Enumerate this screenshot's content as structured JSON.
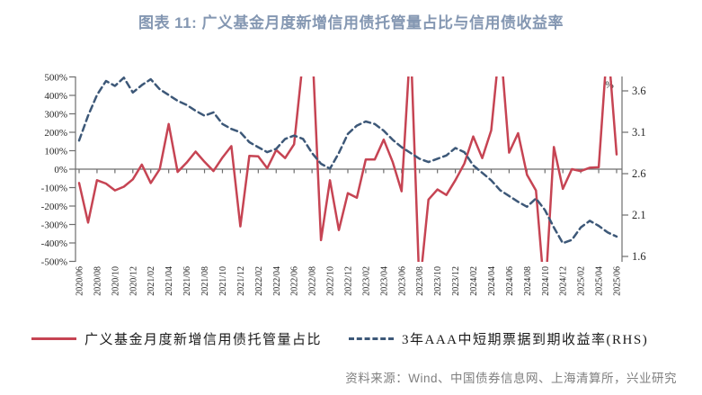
{
  "title": {
    "text": "图表 11: 广义基金月度新增信用债托管量占比与信用债收益率",
    "color": "#8497B2"
  },
  "source": {
    "text": "资料来源：Wind、中国债券信息网、上海清算所，兴业研究"
  },
  "legend": [
    {
      "label": "广义基金月度新增信用债托管量占比",
      "style": "solid",
      "color": "#C64453"
    },
    {
      "label": "3年AAA中短期票据到期收益率(RHS)",
      "style": "dashed",
      "color": "#3D5878"
    }
  ],
  "chart_data": {
    "type": "line",
    "title": "广义基金月度新增信用债托管量占比与信用债收益率",
    "categories": [
      "2020/06",
      "2020/07",
      "2020/08",
      "2020/09",
      "2020/10",
      "2020/11",
      "2020/12",
      "2021/01",
      "2021/02",
      "2021/03",
      "2021/04",
      "2021/05",
      "2021/06",
      "2021/07",
      "2021/08",
      "2021/09",
      "2021/10",
      "2021/11",
      "2021/12",
      "2022/01",
      "2022/02",
      "2022/03",
      "2022/04",
      "2022/05",
      "2022/06",
      "2022/07",
      "2022/08",
      "2022/09",
      "2022/10",
      "2022/11",
      "2022/12",
      "2023/01",
      "2023/02",
      "2023/03",
      "2023/04",
      "2023/05",
      "2023/06",
      "2023/07",
      "2023/08",
      "2023/09",
      "2023/10",
      "2023/11",
      "2023/12",
      "2024/01",
      "2024/02",
      "2024/03",
      "2024/04",
      "2024/05",
      "2024/06",
      "2024/07",
      "2024/08",
      "2024/09",
      "2024/10",
      "2024/11",
      "2024/12",
      "2025/01",
      "2025/02",
      "2025/03",
      "2025/04",
      "2025/05",
      "2025/06"
    ],
    "x_label_every": 2,
    "grid": "zero-line-only",
    "legend_position": "bottom",
    "series": [
      {
        "name": "广义基金月度新增信用债托管量占比",
        "axis": "left",
        "style": "solid",
        "color": "#C64453",
        "note": "values in %, points beyond ±500 are clipped by the plot area (estimated)",
        "values": [
          -75,
          -290,
          -60,
          -78,
          -115,
          -95,
          -55,
          25,
          -75,
          0,
          245,
          -15,
          35,
          95,
          40,
          -10,
          63,
          125,
          -310,
          72,
          70,
          5,
          104,
          60,
          135,
          600,
          700,
          -385,
          -60,
          -330,
          -130,
          -155,
          52,
          52,
          160,
          40,
          -120,
          700,
          -650,
          -165,
          -110,
          -140,
          -60,
          30,
          177,
          60,
          210,
          700,
          90,
          195,
          -30,
          -116,
          -700,
          120,
          -107,
          0,
          -10,
          8,
          10,
          700,
          80
        ]
      },
      {
        "name": "3年AAA中短期票据到期收益率(RHS)",
        "axis": "right",
        "style": "dashed",
        "color": "#3D5878",
        "note": "values in %, right-hand scale",
        "values": [
          3.0,
          3.3,
          3.55,
          3.72,
          3.66,
          3.76,
          3.58,
          3.67,
          3.74,
          3.62,
          3.55,
          3.48,
          3.43,
          3.36,
          3.3,
          3.34,
          3.2,
          3.14,
          3.1,
          2.98,
          2.92,
          2.86,
          2.9,
          3.02,
          3.06,
          3.02,
          2.85,
          2.72,
          2.66,
          2.85,
          3.08,
          3.18,
          3.23,
          3.2,
          3.12,
          3.01,
          2.92,
          2.85,
          2.78,
          2.74,
          2.78,
          2.82,
          2.91,
          2.86,
          2.7,
          2.61,
          2.52,
          2.4,
          2.33,
          2.26,
          2.2,
          2.3,
          2.16,
          1.95,
          1.76,
          1.8,
          1.95,
          2.03,
          1.97,
          1.89,
          1.84
        ]
      }
    ],
    "left_axis": {
      "min": -500,
      "max": 500,
      "step": 100,
      "suffix": "%"
    },
    "right_axis": {
      "min": 1.6,
      "max": 3.6,
      "step": 0.5,
      "unit": "%"
    }
  }
}
